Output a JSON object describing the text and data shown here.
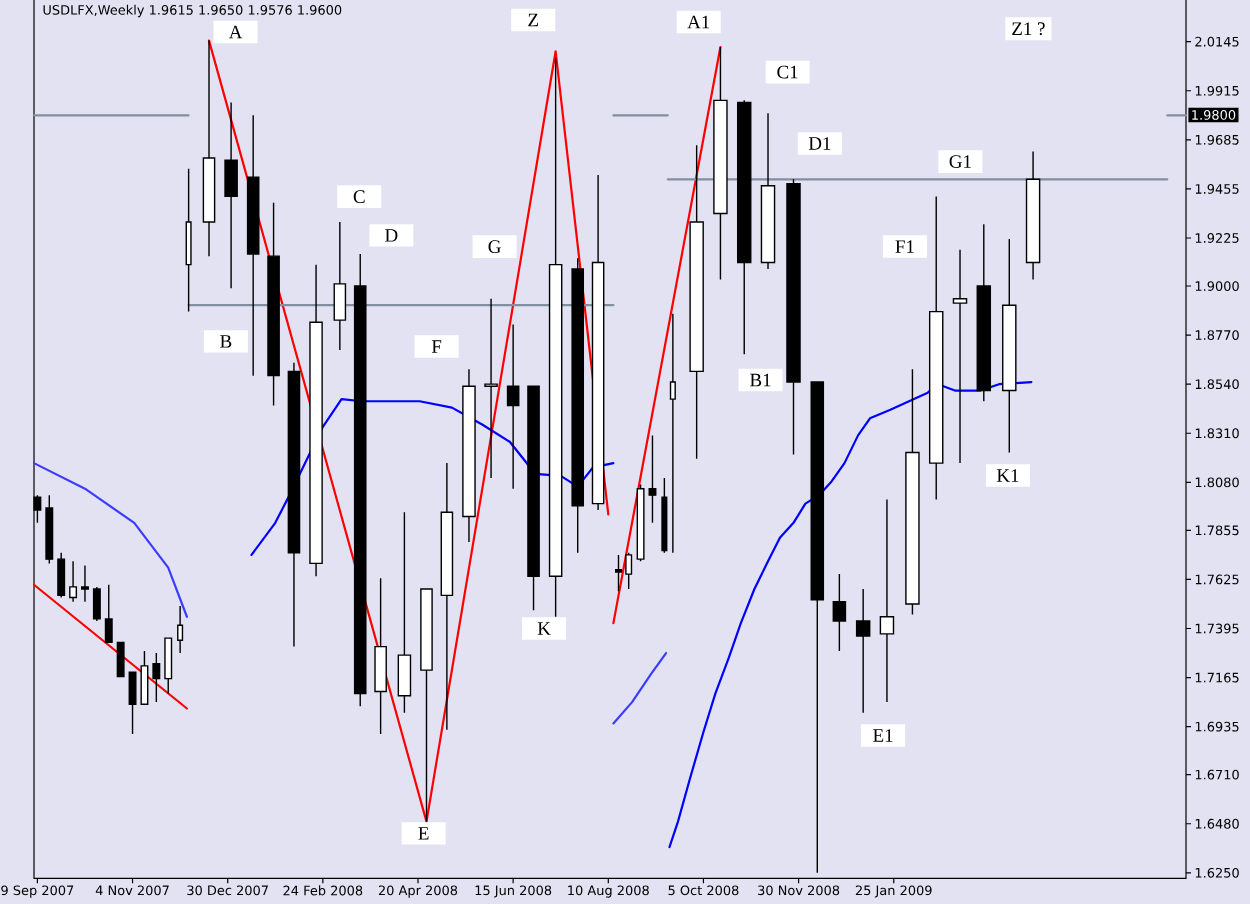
{
  "chart_data": {
    "type": "candlestick",
    "title": "USDLFX,Weekly  1.9615 1.9650 1.9576 1.9600",
    "x": [
      "2007-09-09",
      "2007-09-16",
      "2007-09-23",
      "2007-09-30",
      "2007-10-07",
      "2007-10-14",
      "2007-10-21",
      "2007-10-28",
      "2007-11-04",
      "2007-11-11",
      "2007-11-18",
      "2007-11-25",
      "2007-12-02",
      "2007-12-07",
      "2007-12-19",
      "2008-01-01",
      "2008-01-14",
      "2008-01-26",
      "2008-02-07",
      "2008-02-20",
      "2008-03-05",
      "2008-03-17",
      "2008-03-29",
      "2008-04-12",
      "2008-04-25",
      "2008-05-07",
      "2008-05-20",
      "2008-06-02",
      "2008-06-15",
      "2008-06-27",
      "2008-07-10",
      "2008-07-23",
      "2008-08-04",
      "2008-08-16",
      "2008-08-22",
      "2008-08-29",
      "2008-09-05",
      "2008-09-12",
      "2008-09-17",
      "2008-10-01",
      "2008-10-15",
      "2008-10-29",
      "2008-11-12",
      "2008-11-27",
      "2008-12-11",
      "2008-12-24",
      "2009-01-07",
      "2009-01-21",
      "2009-02-05",
      "2009-02-19",
      "2009-03-05",
      "2009-03-19",
      "2009-04-03",
      "2009-04-17"
    ],
    "ohlc": [
      [
        1.801,
        1.802,
        1.789,
        1.795
      ],
      [
        1.796,
        1.802,
        1.77,
        1.772
      ],
      [
        1.772,
        1.775,
        1.754,
        1.755
      ],
      [
        1.754,
        1.771,
        1.752,
        1.759
      ],
      [
        1.759,
        1.769,
        1.752,
        1.758
      ],
      [
        1.758,
        1.759,
        1.743,
        1.744
      ],
      [
        1.744,
        1.76,
        1.733,
        1.733
      ],
      [
        1.733,
        1.733,
        1.717,
        1.717
      ],
      [
        1.719,
        1.719,
        1.69,
        1.704
      ],
      [
        1.704,
        1.729,
        1.704,
        1.722
      ],
      [
        1.723,
        1.728,
        1.705,
        1.716
      ],
      [
        1.716,
        1.735,
        1.709,
        1.735
      ],
      [
        1.734,
        1.75,
        1.728,
        1.741
      ],
      [
        1.91,
        1.955,
        1.888,
        1.93
      ],
      [
        1.93,
        2.015,
        1.914,
        1.96
      ],
      [
        1.959,
        1.986,
        1.899,
        1.942
      ],
      [
        1.951,
        1.98,
        1.858,
        1.915
      ],
      [
        1.914,
        1.939,
        1.844,
        1.858
      ],
      [
        1.86,
        1.864,
        1.731,
        1.775
      ],
      [
        1.77,
        1.91,
        1.764,
        1.883
      ],
      [
        1.884,
        1.93,
        1.87,
        1.901
      ],
      [
        1.9,
        1.915,
        1.703,
        1.709
      ],
      [
        1.71,
        1.763,
        1.69,
        1.731
      ],
      [
        1.708,
        1.794,
        1.7,
        1.727
      ],
      [
        1.72,
        1.758,
        1.649,
        1.758
      ],
      [
        1.755,
        1.817,
        1.692,
        1.794
      ],
      [
        1.792,
        1.861,
        1.78,
        1.853
      ],
      [
        1.853,
        1.894,
        1.81,
        1.854
      ],
      [
        1.853,
        1.882,
        1.805,
        1.844
      ],
      [
        1.853,
        1.853,
        1.748,
        1.764
      ],
      [
        1.764,
        2.007,
        1.745,
        1.91
      ],
      [
        1.908,
        1.913,
        1.775,
        1.797
      ],
      [
        1.798,
        1.952,
        1.795,
        1.911
      ],
      [
        1.767,
        1.774,
        1.757,
        1.766
      ],
      [
        1.765,
        1.775,
        1.758,
        1.774
      ],
      [
        1.772,
        1.807,
        1.771,
        1.805
      ],
      [
        1.805,
        1.83,
        1.789,
        1.802
      ],
      [
        1.801,
        1.81,
        1.775,
        1.776
      ],
      [
        1.847,
        1.887,
        1.775,
        1.855
      ],
      [
        1.86,
        1.966,
        1.819,
        1.93
      ],
      [
        1.934,
        2.012,
        1.903,
        1.987
      ],
      [
        1.986,
        1.987,
        1.868,
        1.911
      ],
      [
        1.911,
        1.981,
        1.908,
        1.947
      ],
      [
        1.948,
        1.95,
        1.821,
        1.855
      ],
      [
        1.855,
        1.855,
        1.625,
        1.753
      ],
      [
        1.752,
        1.765,
        1.729,
        1.743
      ],
      [
        1.743,
        1.758,
        1.7,
        1.736
      ],
      [
        1.737,
        1.8,
        1.705,
        1.745
      ],
      [
        1.751,
        1.861,
        1.746,
        1.822
      ],
      [
        1.817,
        1.942,
        1.8,
        1.888
      ],
      [
        1.892,
        1.917,
        1.817,
        1.894
      ],
      [
        1.9,
        1.929,
        1.846,
        1.851
      ],
      [
        1.851,
        1.922,
        1.822,
        1.891
      ],
      [
        1.911,
        1.963,
        1.903,
        1.95
      ]
    ],
    "series": [
      {
        "type": "line",
        "color": "#ff0000",
        "x": [
          "2007-12-19",
          "2008-04-25",
          "2008-07-10",
          "2008-08-10"
        ],
        "values": [
          2.015,
          1.649,
          2.01,
          1.793
        ]
      },
      {
        "type": "line",
        "color": "#ff0000",
        "x": [
          "2008-08-13",
          "2008-10-15"
        ],
        "values": [
          1.742,
          2.012
        ]
      },
      {
        "type": "line",
        "color": "#ff0000",
        "x": [
          "2007-09-07",
          "2007-12-06"
        ],
        "values": [
          1.76,
          1.702
        ]
      },
      {
        "type": "line",
        "color": "#3c3cff",
        "x": [
          "2007-09-07",
          "2007-10-07",
          "2007-11-05",
          "2007-11-25",
          "2007-12-06"
        ],
        "values": [
          1.817,
          1.805,
          1.789,
          1.768,
          1.745
        ]
      },
      {
        "type": "line",
        "color": "#0000ff",
        "x": [
          "2008-01-13",
          "2008-01-27",
          "2008-02-05",
          "2008-02-16",
          "2008-02-24",
          "2008-03-06",
          "2008-03-18",
          "2008-04-21",
          "2008-05-10",
          "2008-05-28",
          "2008-06-13",
          "2008-06-28",
          "2008-07-13",
          "2008-07-23",
          "2008-08-01",
          "2008-08-13"
        ],
        "values": [
          1.774,
          1.789,
          1.803,
          1.821,
          1.834,
          1.847,
          1.846,
          1.846,
          1.843,
          1.835,
          1.827,
          1.812,
          1.811,
          1.806,
          1.815,
          1.817
        ]
      },
      {
        "type": "line",
        "color": "#3c3cff",
        "x": [
          "2008-08-13",
          "2008-08-24",
          "2008-09-04",
          "2008-09-13"
        ],
        "values": [
          1.695,
          1.705,
          1.718,
          1.728
        ]
      },
      {
        "type": "line",
        "color": "#0000ff",
        "x": [
          "2008-09-15",
          "2008-09-20",
          "2008-09-27",
          "2008-10-05",
          "2008-10-12",
          "2008-10-20",
          "2008-10-27",
          "2008-11-04",
          "2008-11-12",
          "2008-11-19",
          "2008-11-27",
          "2008-12-04",
          "2008-12-12",
          "2008-12-19",
          "2008-12-27",
          "2009-01-04",
          "2009-01-11",
          "2009-01-23",
          "2009-02-03",
          "2009-02-14",
          "2009-02-20",
          "2009-03-02",
          "2009-03-17",
          "2009-03-28",
          "2009-04-16"
        ],
        "values": [
          1.637,
          1.649,
          1.669,
          1.691,
          1.709,
          1.726,
          1.742,
          1.758,
          1.771,
          1.782,
          1.789,
          1.798,
          1.802,
          1.808,
          1.817,
          1.83,
          1.838,
          1.842,
          1.846,
          1.85,
          1.854,
          1.851,
          1.851,
          1.854,
          1.855
        ]
      },
      {
        "type": "line",
        "color": "#8090a0",
        "x": [
          "2007-09-07",
          "2007-12-07",
          "2008-01-01",
          "2008-08-13",
          "2008-09-14",
          "2009-01-01",
          "2009-07-05",
          "2009-07-16"
        ],
        "values": [
          1.98,
          1.98,
          null,
          1.98,
          1.98,
          null,
          1.98,
          1.98
        ]
      },
      {
        "type": "line",
        "color": "#8090a0",
        "x": [
          "2007-12-07",
          "2008-08-13"
        ],
        "values": [
          1.891,
          1.891
        ]
      },
      {
        "type": "line",
        "color": "#8090a0",
        "x": [
          "2008-09-14",
          "2009-07-05"
        ],
        "values": [
          1.95,
          1.95
        ]
      }
    ],
    "xlim": [
      "2007-09-07",
      "2009-07-16"
    ],
    "ylim": [
      1.6224,
      2.0348
    ],
    "xticks": [
      {
        "value": "2007-09-09",
        "label": "9 Sep 2007"
      },
      {
        "value": "2007-11-04",
        "label": "4 Nov 2007"
      },
      {
        "value": "2007-12-30",
        "label": "30 Dec 2007"
      },
      {
        "value": "2008-02-24",
        "label": "24 Feb 2008"
      },
      {
        "value": "2008-04-20",
        "label": "20 Apr 2008"
      },
      {
        "value": "2008-06-15",
        "label": "15 Jun 2008"
      },
      {
        "value": "2008-08-10",
        "label": "10 Aug 2008"
      },
      {
        "value": "2008-10-05",
        "label": "5 Oct 2008"
      },
      {
        "value": "2008-11-30",
        "label": "30 Nov 2008"
      },
      {
        "value": "2009-01-25",
        "label": "25 Jan 2009"
      }
    ],
    "yticks": [
      {
        "value": 1.625,
        "label": "1.6250"
      },
      {
        "value": 1.648,
        "label": "1.6480"
      },
      {
        "value": 1.671,
        "label": "1.6710"
      },
      1.6935,
      1.7165,
      1.7395,
      1.7625,
      1.7855,
      {
        "value": 1.808,
        "label": "1.8080"
      },
      {
        "value": 1.831,
        "label": "1.8310"
      },
      {
        "value": 1.854,
        "label": "1.8540"
      },
      {
        "value": 1.877,
        "label": "1.8770"
      },
      {
        "value": 1.9,
        "label": "1.9000"
      },
      1.9225,
      1.9455,
      1.9685,
      1.9915,
      2.0145
    ],
    "annotations": [
      "A",
      "B",
      "C",
      "D",
      "E",
      "F",
      "G",
      "Z",
      "K",
      "A1",
      "B1",
      "C1",
      "D1",
      "E1",
      "F1",
      "G1",
      "K1",
      "Z1 ?",
      "1.9800"
    ]
  }
}
